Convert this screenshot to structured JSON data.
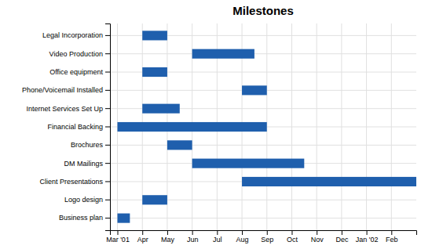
{
  "chart_data": {
    "type": "gantt",
    "title": "Milestones",
    "orientation": "horizontal",
    "categories": [
      "Legal Incorporation",
      "Video Production",
      "Office equipment",
      "Phone/Voicemail Installed",
      "Internet Services Set Up",
      "Financial Backing",
      "Brochures",
      "DM Mailings",
      "Client Presentations",
      "Logo design",
      "Business plan"
    ],
    "start": [
      1.0,
      3.0,
      1.0,
      5.0,
      1.0,
      0.0,
      2.0,
      3.0,
      5.0,
      1.0,
      0.0
    ],
    "end": [
      2.0,
      5.5,
      2.0,
      6.0,
      2.5,
      6.0,
      3.0,
      7.5,
      12.0,
      2.0,
      0.5
    ],
    "color": "#1F5FAD",
    "xlim": [
      -0.3,
      12
    ],
    "xticks": [
      {
        "value": 0,
        "label": "Mar '01"
      },
      {
        "value": 1,
        "label": "Apr"
      },
      {
        "value": 2,
        "label": "May"
      },
      {
        "value": 3,
        "label": "Jun"
      },
      {
        "value": 4,
        "label": "Jul"
      },
      {
        "value": 5,
        "label": "Aug"
      },
      {
        "value": 6,
        "label": "Sep"
      },
      {
        "value": 7,
        "label": "Oct"
      },
      {
        "value": 8,
        "label": "Nov"
      },
      {
        "value": 9,
        "label": "Dec"
      },
      {
        "value": 10,
        "label": "Jan '02"
      },
      {
        "value": 11,
        "label": "Feb"
      }
    ],
    "grid": true
  }
}
